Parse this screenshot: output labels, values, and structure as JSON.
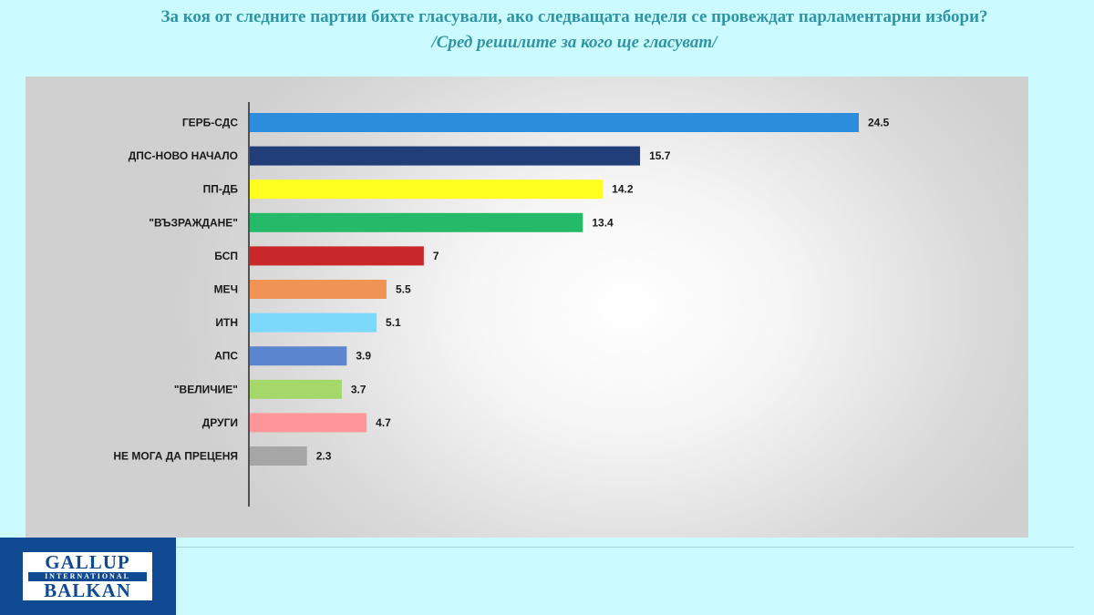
{
  "header": {
    "title": "За коя от следните партии бихте  гласували,  ако следващата неделя се провеждат парламентарни избори?",
    "subtitle": "/Сред решилите за кого ще гласуват/"
  },
  "logo": {
    "line1": "GALLUP",
    "line2": "INTERNATIONAL",
    "line3": "BALKAN"
  },
  "colors": {
    "title": "#2e95a6",
    "page_background": "#ccfbff",
    "logo_background": "#0f4a92"
  },
  "chart_data": {
    "type": "bar",
    "orientation": "horizontal",
    "title": "",
    "xlabel": "",
    "ylabel": "",
    "grid": false,
    "legend": "none",
    "xlim": [
      0,
      24.5
    ],
    "categories": [
      "ГЕРБ-СДС",
      "ДПС-НОВО НАЧАЛО",
      "ПП-ДБ",
      "\"ВЪЗРАЖДАНЕ\"",
      "БСП",
      "МЕЧ",
      "ИТН",
      "АПС",
      "\"ВЕЛИЧИЕ\"",
      "ДРУГИ",
      "НЕ МОГА ДА ПРЕЦЕНЯ"
    ],
    "values": [
      24.5,
      15.7,
      14.2,
      13.4,
      7,
      5.5,
      5.1,
      3.9,
      3.7,
      4.7,
      2.3
    ],
    "value_labels": [
      "24.5",
      "15.7",
      "14.2",
      "13.4",
      "7",
      "5.5",
      "5.1",
      "3.9",
      "3.7",
      "4.7",
      "2.3"
    ],
    "bar_colors": [
      "#2b8ddb",
      "#223e78",
      "#ffff20",
      "#25ba6a",
      "#c8282a",
      "#ef9455",
      "#7dd9fb",
      "#5b86cf",
      "#a4d86a",
      "#fe969b",
      "#a6a6a6"
    ]
  }
}
